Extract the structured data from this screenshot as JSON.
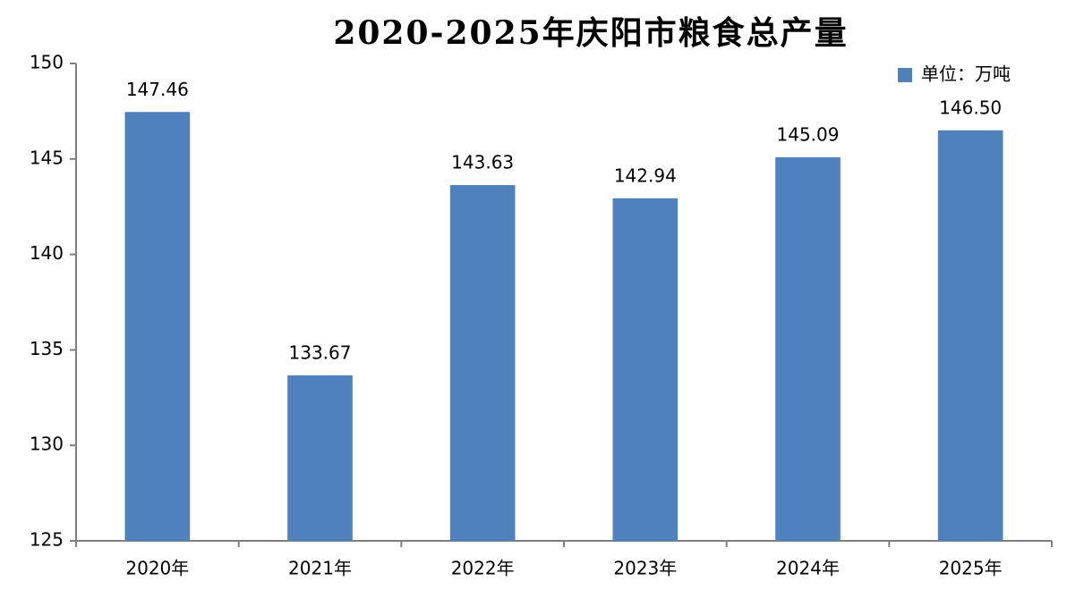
{
  "chart_data": {
    "type": "bar",
    "title": "2020-2025年庆阳市粮食总产量",
    "categories": [
      "2020年",
      "2021年",
      "2022年",
      "2023年",
      "2024年",
      "2025年"
    ],
    "series": [
      {
        "name": "单位：万吨",
        "color": "#4f81bd",
        "values": [
          147.46,
          133.67,
          143.63,
          142.94,
          145.09,
          146.5
        ],
        "value_labels": [
          "147.46",
          "133.67",
          "143.63",
          "142.94",
          "145.09",
          "146.50"
        ]
      }
    ],
    "ylim": [
      125,
      150
    ],
    "yticks": [
      125,
      130,
      135,
      140,
      145,
      150
    ],
    "grid": false,
    "legend": "top-right"
  }
}
